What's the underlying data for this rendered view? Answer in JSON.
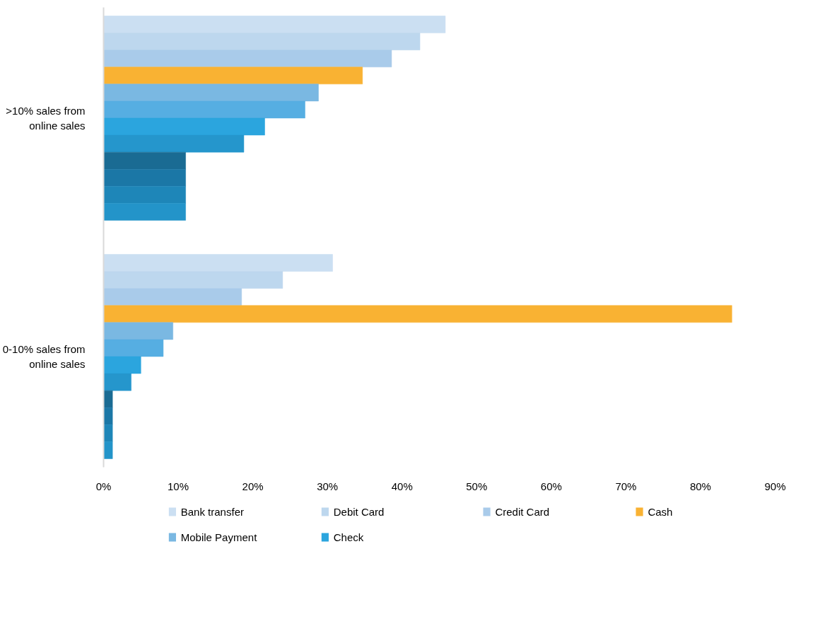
{
  "chart_data": {
    "type": "bar",
    "orientation": "horizontal",
    "categories": [
      ">10% sales from online sales",
      "0-10% sales from online sales"
    ],
    "xlim": [
      0,
      90
    ],
    "xticks": [
      {
        "value": 0,
        "label": "0%"
      },
      {
        "value": 10,
        "label": "10%"
      },
      {
        "value": 20,
        "label": "20%"
      },
      {
        "value": 30,
        "label": "30%"
      },
      {
        "value": 40,
        "label": "40%"
      },
      {
        "value": 50,
        "label": "50%"
      },
      {
        "value": 60,
        "label": "60%"
      },
      {
        "value": 70,
        "label": "70%"
      },
      {
        "value": 80,
        "label": "80%"
      },
      {
        "value": 90,
        "label": "90%"
      }
    ],
    "grid": false,
    "legend": "bottom",
    "series": [
      {
        "name": "Bank transfer",
        "color": "#cbdff2",
        "values": [
          45.8,
          30.7
        ]
      },
      {
        "name": "Debit Card",
        "color": "#bdd7ee",
        "values": [
          42.4,
          24.0
        ]
      },
      {
        "name": "Credit Card",
        "color": "#a9cbea",
        "values": [
          38.6,
          18.5
        ]
      },
      {
        "name": "Cash",
        "color": "#f9b233",
        "values": [
          34.7,
          84.2
        ]
      },
      {
        "name": "Mobile Payment",
        "color": "#7ab8e2",
        "values": [
          28.8,
          9.3
        ]
      },
      {
        "color": "#56aee2",
        "values": [
          27.0,
          8.0
        ]
      },
      {
        "name": "Check",
        "color": "#2ba5de",
        "values": [
          21.6,
          5.0
        ]
      },
      {
        "color": "#2596cc",
        "values": [
          18.8,
          3.7
        ]
      },
      {
        "color": "#1a6b93",
        "values": [
          11.0,
          1.2
        ]
      },
      {
        "color": "#1b77a6",
        "values": [
          11.0,
          1.2
        ]
      },
      {
        "color": "#1e86b8",
        "values": [
          11.0,
          1.2
        ]
      },
      {
        "color": "#2394c9",
        "values": [
          11.0,
          1.2
        ]
      }
    ]
  }
}
